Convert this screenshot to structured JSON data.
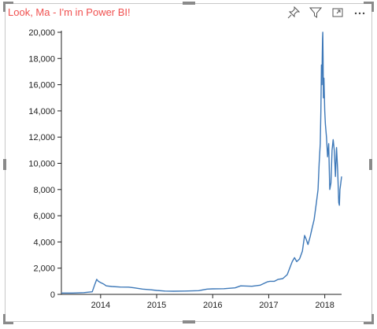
{
  "visual": {
    "title": "Look, Ma - I'm in Power BI!",
    "title_color": "#f0504f",
    "toolbar_icons": [
      "pin-icon",
      "filter-icon",
      "focus-mode-icon",
      "more-options-icon"
    ]
  },
  "chart_data": {
    "type": "line",
    "title": "",
    "xlabel": "",
    "ylabel": "",
    "color": "#3d78b8",
    "x_ticks": [
      "2014",
      "2015",
      "2016",
      "2017",
      "2018"
    ],
    "y_ticks": [
      "0",
      "2,000",
      "4,000",
      "6,000",
      "8,000",
      "10,000",
      "12,000",
      "14,000",
      "16,000",
      "18,000",
      "20,000"
    ],
    "ylim": [
      0,
      20000
    ],
    "xlim": [
      2013.3,
      2018.3
    ],
    "grid": false,
    "points": [
      [
        2013.3,
        100
      ],
      [
        2013.5,
        100
      ],
      [
        2013.7,
        130
      ],
      [
        2013.85,
        200
      ],
      [
        2013.9,
        800
      ],
      [
        2013.93,
        1150
      ],
      [
        2013.96,
        1000
      ],
      [
        2014.0,
        900
      ],
      [
        2014.05,
        800
      ],
      [
        2014.1,
        650
      ],
      [
        2014.2,
        600
      ],
      [
        2014.35,
        560
      ],
      [
        2014.5,
        550
      ],
      [
        2014.6,
        500
      ],
      [
        2014.75,
        400
      ],
      [
        2014.9,
        350
      ],
      [
        2015.0,
        300
      ],
      [
        2015.15,
        250
      ],
      [
        2015.3,
        240
      ],
      [
        2015.5,
        250
      ],
      [
        2015.75,
        280
      ],
      [
        2015.9,
        400
      ],
      [
        2016.0,
        420
      ],
      [
        2016.2,
        430
      ],
      [
        2016.4,
        500
      ],
      [
        2016.5,
        650
      ],
      [
        2016.7,
        620
      ],
      [
        2016.85,
        700
      ],
      [
        2016.97,
        950
      ],
      [
        2017.02,
        1000
      ],
      [
        2017.1,
        1000
      ],
      [
        2017.17,
        1150
      ],
      [
        2017.25,
        1200
      ],
      [
        2017.33,
        1500
      ],
      [
        2017.42,
        2500
      ],
      [
        2017.46,
        2800
      ],
      [
        2017.5,
        2500
      ],
      [
        2017.55,
        2700
      ],
      [
        2017.6,
        3300
      ],
      [
        2017.64,
        4500
      ],
      [
        2017.67,
        4200
      ],
      [
        2017.7,
        3800
      ],
      [
        2017.74,
        4400
      ],
      [
        2017.77,
        5000
      ],
      [
        2017.81,
        5700
      ],
      [
        2017.85,
        7000
      ],
      [
        2017.88,
        8000
      ],
      [
        2017.9,
        10000
      ],
      [
        2017.92,
        11500
      ],
      [
        2017.93,
        14000
      ],
      [
        2017.94,
        17500
      ],
      [
        2017.95,
        16000
      ],
      [
        2017.955,
        18000
      ],
      [
        2017.96,
        19500
      ],
      [
        2017.965,
        20000
      ],
      [
        2017.97,
        18000
      ],
      [
        2017.975,
        15000
      ],
      [
        2017.985,
        16500
      ],
      [
        2018.0,
        14000
      ],
      [
        2018.01,
        13000
      ],
      [
        2018.03,
        12000
      ],
      [
        2018.05,
        10500
      ],
      [
        2018.07,
        11500
      ],
      [
        2018.09,
        8000
      ],
      [
        2018.11,
        8500
      ],
      [
        2018.13,
        11000
      ],
      [
        2018.15,
        11800
      ],
      [
        2018.17,
        11000
      ],
      [
        2018.19,
        9000
      ],
      [
        2018.21,
        11200
      ],
      [
        2018.23,
        9500
      ],
      [
        2018.25,
        7000
      ],
      [
        2018.26,
        6800
      ],
      [
        2018.27,
        8000
      ],
      [
        2018.28,
        8300
      ],
      [
        2018.3,
        9000
      ]
    ]
  }
}
